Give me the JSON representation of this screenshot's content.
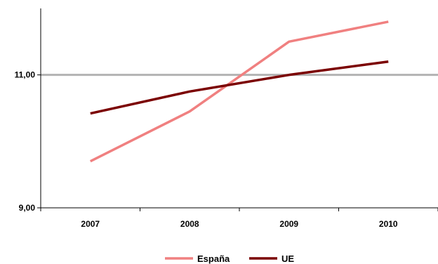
{
  "chart_data": {
    "type": "line",
    "title": "",
    "xlabel": "",
    "ylabel": "",
    "categories": [
      "2007",
      "2008",
      "2009",
      "2010"
    ],
    "y_tick_labels": [
      "9,00",
      "11,00"
    ],
    "y_ticks": [
      9,
      11
    ],
    "ylim": [
      9,
      12
    ],
    "reference_line": {
      "y": 11,
      "color": "#b3b3b3"
    },
    "grid": false,
    "legend_position": "bottom",
    "series": [
      {
        "name": "España",
        "color": "#f08080",
        "values": [
          9.7,
          10.45,
          11.5,
          11.8
        ]
      },
      {
        "name": "UE",
        "color": "#7b0000",
        "values": [
          10.42,
          10.75,
          11.0,
          11.2
        ]
      }
    ]
  }
}
